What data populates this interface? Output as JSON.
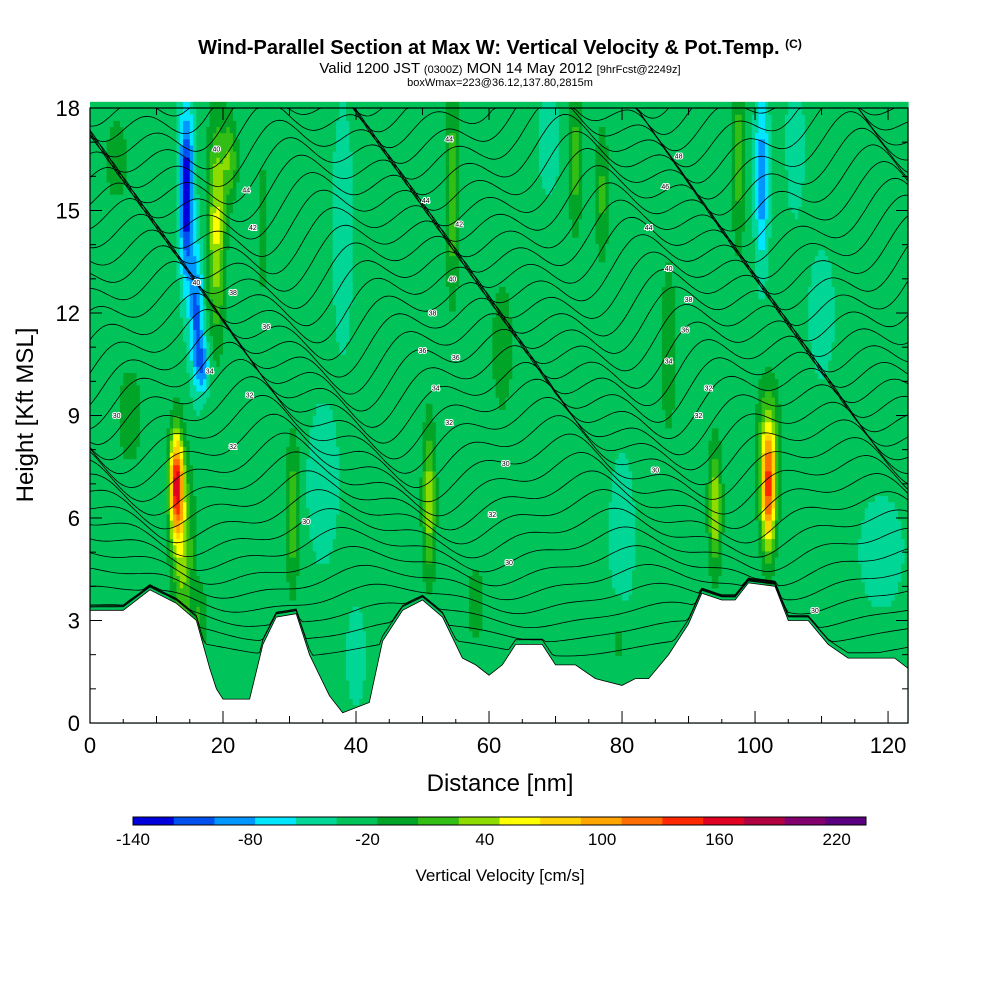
{
  "header": {
    "title_main": "Wind-Parallel Section at Max W: Vertical Velocity & Pot.Temp.",
    "title_mark": "(C)",
    "valid_a": "Valid 1200 JST",
    "valid_b": "(0300Z)",
    "valid_c": "MON 14 May 2012",
    "valid_d": "[9hrFcst@2249z]",
    "box_info": "boxWmax=223@36.12,137.80,2815m"
  },
  "chart_data": {
    "type": "heatmap",
    "xlabel": "Distance [nm]",
    "ylabel": "Height [Kft MSL]",
    "xlim": [
      0,
      123
    ],
    "ylim": [
      0,
      18
    ],
    "xticks": [
      0,
      20,
      40,
      60,
      80,
      100,
      120
    ],
    "yticks": [
      0,
      3,
      6,
      9,
      12,
      15,
      18
    ],
    "colorbar": {
      "label": "Vertical Velocity [cm/s]",
      "tick_labels": [
        "-140",
        "-80",
        "-20",
        "40",
        "100",
        "160",
        "220"
      ],
      "tick_values": [
        -140,
        -80,
        -20,
        40,
        100,
        160,
        220
      ],
      "range": [
        -140,
        235
      ],
      "step": 25,
      "colors": [
        "#0000dc",
        "#0050f0",
        "#0096ff",
        "#00e6ff",
        "#00d796",
        "#00c35a",
        "#00a528",
        "#32be14",
        "#8cdc00",
        "#ffff00",
        "#ffd200",
        "#ffa500",
        "#ff6e00",
        "#ff2800",
        "#e00020",
        "#b00040",
        "#82006e",
        "#5a007f"
      ]
    },
    "background_w": -5,
    "terrain_height": [
      [
        0,
        3.3
      ],
      [
        5,
        3.3
      ],
      [
        9,
        3.9
      ],
      [
        13,
        3.5
      ],
      [
        16,
        3.0
      ],
      [
        18,
        1.6
      ],
      [
        19,
        1.0
      ],
      [
        20,
        0.7
      ],
      [
        24,
        0.7
      ],
      [
        26,
        2.3
      ],
      [
        28,
        3.1
      ],
      [
        31,
        3.2
      ],
      [
        33,
        2.0
      ],
      [
        36,
        0.8
      ],
      [
        38,
        0.3
      ],
      [
        42,
        0.6
      ],
      [
        44,
        2.4
      ],
      [
        47,
        3.3
      ],
      [
        50,
        3.6
      ],
      [
        53,
        3.1
      ],
      [
        56,
        1.9
      ],
      [
        58,
        1.7
      ],
      [
        60,
        1.4
      ],
      [
        62,
        1.7
      ],
      [
        64,
        2.3
      ],
      [
        68,
        2.3
      ],
      [
        70,
        1.7
      ],
      [
        73,
        1.7
      ],
      [
        76,
        1.3
      ],
      [
        80,
        1.1
      ],
      [
        82,
        1.3
      ],
      [
        84,
        1.3
      ],
      [
        87,
        2.0
      ],
      [
        90,
        2.9
      ],
      [
        92,
        3.8
      ],
      [
        95,
        3.6
      ],
      [
        97,
        3.6
      ],
      [
        99,
        4.1
      ],
      [
        103,
        4.0
      ],
      [
        105,
        3.0
      ],
      [
        108,
        3.0
      ],
      [
        111,
        2.3
      ],
      [
        114,
        1.9
      ],
      [
        121,
        1.9
      ],
      [
        123,
        1.6
      ]
    ],
    "w_features": [
      {
        "x": 13,
        "z": 7.0,
        "sx": 1.0,
        "sz": 1.5,
        "w": 210
      },
      {
        "x": 14,
        "z": 5.0,
        "sx": 1.6,
        "sz": 2.5,
        "w": 75
      },
      {
        "x": 16.5,
        "z": 3.0,
        "sx": 1.0,
        "sz": 1.0,
        "w": 40
      },
      {
        "x": 19,
        "z": 14.5,
        "sx": 1.3,
        "sz": 3.0,
        "w": 95
      },
      {
        "x": 21,
        "z": 16.5,
        "sx": 1.2,
        "sz": 1.2,
        "w": 60
      },
      {
        "x": 14.5,
        "z": 15.5,
        "sx": 1.0,
        "sz": 2.5,
        "w": -140
      },
      {
        "x": 16,
        "z": 12.0,
        "sx": 1.0,
        "sz": 2.0,
        "w": -90
      },
      {
        "x": 17,
        "z": 10.5,
        "sx": 1.0,
        "sz": 0.8,
        "w": -70
      },
      {
        "x": 30.5,
        "z": 6.2,
        "sx": 1.0,
        "sz": 2.2,
        "w": 60
      },
      {
        "x": 26,
        "z": 14.5,
        "sx": 1.2,
        "sz": 3.5,
        "w": 20
      },
      {
        "x": 38,
        "z": 14.5,
        "sx": 1.5,
        "sz": 3.5,
        "w": -30
      },
      {
        "x": 35,
        "z": 7.0,
        "sx": 2.5,
        "sz": 2.5,
        "w": -25
      },
      {
        "x": 40,
        "z": 2.0,
        "sx": 1.5,
        "sz": 1.5,
        "w": -25
      },
      {
        "x": 51,
        "z": 6.5,
        "sx": 1.0,
        "sz": 2.2,
        "w": 80
      },
      {
        "x": 54.5,
        "z": 15.5,
        "sx": 1.0,
        "sz": 3.0,
        "w": 60
      },
      {
        "x": 62,
        "z": 11.0,
        "sx": 2.0,
        "sz": 2.5,
        "w": 25
      },
      {
        "x": 58,
        "z": 3.5,
        "sx": 1.5,
        "sz": 1.2,
        "w": 30
      },
      {
        "x": 73,
        "z": 16.5,
        "sx": 1.0,
        "sz": 2.0,
        "w": 55
      },
      {
        "x": 77,
        "z": 15.5,
        "sx": 1.0,
        "sz": 2.0,
        "w": 45
      },
      {
        "x": 69,
        "z": 17.0,
        "sx": 1.5,
        "sz": 1.5,
        "w": -30
      },
      {
        "x": 80,
        "z": 5.5,
        "sx": 2.0,
        "sz": 2.5,
        "w": -25
      },
      {
        "x": 79.5,
        "z": 2.5,
        "sx": 1.0,
        "sz": 1.0,
        "w": 25
      },
      {
        "x": 87,
        "z": 11.0,
        "sx": 1.3,
        "sz": 3.0,
        "w": 30
      },
      {
        "x": 94,
        "z": 6.3,
        "sx": 1.0,
        "sz": 1.8,
        "w": 85
      },
      {
        "x": 97.5,
        "z": 16.5,
        "sx": 1.0,
        "sz": 2.5,
        "w": 55
      },
      {
        "x": 101,
        "z": 16.0,
        "sx": 1.0,
        "sz": 2.5,
        "w": -80
      },
      {
        "x": 102,
        "z": 6.8,
        "sx": 1.0,
        "sz": 1.8,
        "w": 165
      },
      {
        "x": 102,
        "z": 8.0,
        "sx": 1.8,
        "sz": 2.0,
        "w": 60
      },
      {
        "x": 106,
        "z": 17.0,
        "sx": 1.3,
        "sz": 2.0,
        "w": -30
      },
      {
        "x": 110,
        "z": 12.0,
        "sx": 3.0,
        "sz": 3.0,
        "w": -15
      },
      {
        "x": 119,
        "z": 5.0,
        "sx": 4.0,
        "sz": 2.0,
        "w": -20
      },
      {
        "x": 4,
        "z": 16.5,
        "sx": 3.0,
        "sz": 2.0,
        "w": 20
      },
      {
        "x": 6,
        "z": 9.0,
        "sx": 3.0,
        "sz": 2.5,
        "w": 20
      }
    ],
    "contour_labels": [
      {
        "x": 4,
        "z": 9.0,
        "text": "30"
      },
      {
        "x": 19,
        "z": 16.8,
        "text": "40"
      },
      {
        "x": 23.5,
        "z": 15.6,
        "text": "44"
      },
      {
        "x": 24.5,
        "z": 14.5,
        "text": "42"
      },
      {
        "x": 16,
        "z": 12.9,
        "text": "40"
      },
      {
        "x": 21.5,
        "z": 12.6,
        "text": "38"
      },
      {
        "x": 26.5,
        "z": 11.6,
        "text": "36"
      },
      {
        "x": 18,
        "z": 10.3,
        "text": "34"
      },
      {
        "x": 24,
        "z": 9.6,
        "text": "32"
      },
      {
        "x": 21.5,
        "z": 8.1,
        "text": "32"
      },
      {
        "x": 32.5,
        "z": 5.9,
        "text": "30"
      },
      {
        "x": 54,
        "z": 17.1,
        "text": "44"
      },
      {
        "x": 50.5,
        "z": 15.3,
        "text": "44"
      },
      {
        "x": 55.5,
        "z": 14.6,
        "text": "42"
      },
      {
        "x": 54.5,
        "z": 13.0,
        "text": "40"
      },
      {
        "x": 51.5,
        "z": 12.0,
        "text": "38"
      },
      {
        "x": 50,
        "z": 10.9,
        "text": "36"
      },
      {
        "x": 55,
        "z": 10.7,
        "text": "36"
      },
      {
        "x": 52,
        "z": 9.8,
        "text": "34"
      },
      {
        "x": 54,
        "z": 8.8,
        "text": "32"
      },
      {
        "x": 62.5,
        "z": 7.6,
        "text": "30"
      },
      {
        "x": 60.5,
        "z": 6.1,
        "text": "32"
      },
      {
        "x": 63,
        "z": 4.7,
        "text": "30"
      },
      {
        "x": 88.5,
        "z": 16.6,
        "text": "48"
      },
      {
        "x": 86.5,
        "z": 15.7,
        "text": "46"
      },
      {
        "x": 84,
        "z": 14.5,
        "text": "44"
      },
      {
        "x": 87,
        "z": 13.3,
        "text": "40"
      },
      {
        "x": 90,
        "z": 12.4,
        "text": "38"
      },
      {
        "x": 89.5,
        "z": 11.5,
        "text": "36"
      },
      {
        "x": 87,
        "z": 10.6,
        "text": "34"
      },
      {
        "x": 93,
        "z": 9.8,
        "text": "32"
      },
      {
        "x": 91.5,
        "z": 9.0,
        "text": "32"
      },
      {
        "x": 85,
        "z": 7.4,
        "text": "30"
      },
      {
        "x": 109,
        "z": 3.3,
        "text": "30"
      }
    ]
  }
}
